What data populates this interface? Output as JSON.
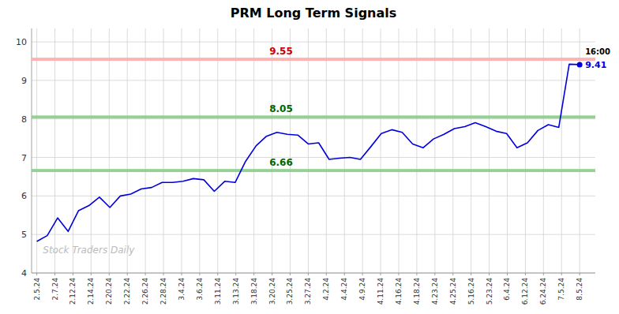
{
  "chart_data": {
    "type": "line",
    "title": "PRM Long Term Signals",
    "x": [
      0,
      1,
      2,
      3,
      4,
      5,
      6,
      7,
      8,
      9,
      10,
      11,
      12,
      13,
      14,
      15,
      16,
      17,
      18,
      19,
      20,
      21,
      22,
      23,
      24,
      25,
      26,
      27,
      28,
      29,
      30,
      31,
      32,
      33,
      34,
      35,
      36,
      37,
      38,
      39,
      40,
      41,
      42,
      43,
      44,
      45,
      46,
      47,
      48,
      49,
      50,
      51,
      52
    ],
    "values": [
      4.82,
      4.97,
      5.43,
      5.08,
      5.62,
      5.75,
      5.97,
      5.7,
      6.0,
      6.05,
      6.18,
      6.22,
      6.35,
      6.35,
      6.38,
      6.45,
      6.42,
      6.12,
      6.38,
      6.35,
      6.9,
      7.3,
      7.55,
      7.65,
      7.6,
      7.58,
      7.35,
      7.38,
      6.95,
      6.98,
      7.0,
      6.95,
      7.28,
      7.62,
      7.72,
      7.65,
      7.35,
      7.25,
      7.48,
      7.6,
      7.75,
      7.8,
      7.9,
      7.8,
      7.68,
      7.62,
      7.25,
      7.38,
      7.7,
      7.85,
      7.78,
      9.42,
      9.41
    ],
    "value_labels": [
      null,
      null,
      null,
      null,
      null,
      null,
      null,
      null,
      null,
      null,
      null,
      null,
      null,
      null,
      null,
      null,
      null,
      null,
      null,
      null,
      null,
      null,
      null,
      null,
      null,
      null,
      null,
      null,
      null,
      null,
      null,
      null,
      null,
      null,
      null,
      null,
      null,
      null,
      null,
      null,
      null,
      null,
      null,
      null,
      null,
      null,
      null,
      null,
      null,
      null,
      null,
      null,
      "9.41"
    ],
    "color": "#0000dd",
    "xlim": [
      -0.5,
      53.5
    ],
    "xticks": [
      {
        "value": 0,
        "label": "2.5.24"
      },
      {
        "value": 1.7333,
        "label": "2.7.24"
      },
      {
        "value": 3.4667,
        "label": "2.12.24"
      },
      {
        "value": 5.2,
        "label": "2.14.24"
      },
      {
        "value": 6.9333,
        "label": "2.20.24"
      },
      {
        "value": 8.6667,
        "label": "2.22.24"
      },
      {
        "value": 10.4,
        "label": "2.26.24"
      },
      {
        "value": 12.1333,
        "label": "2.28.24"
      },
      {
        "value": 13.8667,
        "label": "3.4.24"
      },
      {
        "value": 15.6,
        "label": "3.6.24"
      },
      {
        "value": 17.3333,
        "label": "3.11.24"
      },
      {
        "value": 19.0667,
        "label": "3.13.24"
      },
      {
        "value": 20.8,
        "label": "3.18.24"
      },
      {
        "value": 22.5333,
        "label": "3.20.24"
      },
      {
        "value": 24.2667,
        "label": "3.25.24"
      },
      {
        "value": 26,
        "label": "3.27.24"
      },
      {
        "value": 27.7333,
        "label": "4.2.24"
      },
      {
        "value": 29.4667,
        "label": "4.4.24"
      },
      {
        "value": 31.2,
        "label": "4.9.24"
      },
      {
        "value": 32.9333,
        "label": "4.11.24"
      },
      {
        "value": 34.6667,
        "label": "4.16.24"
      },
      {
        "value": 36.4,
        "label": "4.18.24"
      },
      {
        "value": 38.1333,
        "label": "4.23.24"
      },
      {
        "value": 39.8667,
        "label": "4.25.24"
      },
      {
        "value": 41.6,
        "label": "5.16.24"
      },
      {
        "value": 43.3333,
        "label": "5.23.24"
      },
      {
        "value": 45.0667,
        "label": "6.4.24"
      },
      {
        "value": 46.8,
        "label": "6.12.24"
      },
      {
        "value": 48.5333,
        "label": "6.24.24"
      },
      {
        "value": 50.2667,
        "label": "7.5.24"
      },
      {
        "value": 52,
        "label": "8.5.24"
      }
    ],
    "ylim": [
      4.0,
      10.35
    ],
    "yticks": [
      4,
      5,
      6,
      7,
      8,
      9,
      10
    ],
    "grid": true,
    "hlines": [
      {
        "value": 9.55,
        "label": "9.55",
        "color": "#ffaaaa",
        "label_color": "#cc0000"
      },
      {
        "value": 8.05,
        "label": "8.05",
        "color": "#88cc88",
        "label_color": "#006600"
      },
      {
        "value": 6.66,
        "label": "6.66",
        "color": "#88cc88",
        "label_color": "#006600"
      }
    ],
    "annotations": [
      "16:00"
    ],
    "watermark": "Stock Traders Daily"
  }
}
